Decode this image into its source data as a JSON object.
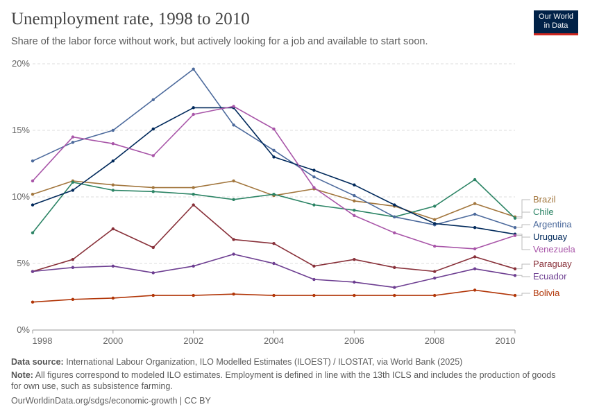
{
  "header": {
    "title": "Unemployment rate, 1998 to 2010",
    "subtitle": "Share of the labor force without work, but actively looking for a job and available to start soon.",
    "logo_line1": "Our World",
    "logo_line2": "in Data"
  },
  "footer": {
    "source_label": "Data source:",
    "source_text": "International Labour Organization, ILO Modelled Estimates (ILOEST) / ILOSTAT, via World Bank (2025)",
    "note_label": "Note:",
    "note_text": "All figures correspond to modeled ILO estimates. Employment is defined in line with the 13th ICLS and includes the production of goods for own use, such as subsistence farming.",
    "url": "OurWorldinData.org/sdgs/economic-growth | CC BY"
  },
  "chart_data": {
    "type": "line",
    "x": [
      1998,
      1999,
      2000,
      2001,
      2002,
      2003,
      2004,
      2005,
      2006,
      2007,
      2008,
      2009,
      2010
    ],
    "xticks": [
      1998,
      2000,
      2002,
      2004,
      2006,
      2008,
      2010
    ],
    "yticks": [
      0,
      5,
      10,
      15,
      20
    ],
    "ytick_labels": [
      "0%",
      "5%",
      "10%",
      "15%",
      "20%"
    ],
    "ylim": [
      0,
      20
    ],
    "xlim": [
      1998,
      2010
    ],
    "grid": "horizontal dashed",
    "legend": "right, labels at line ends",
    "series": [
      {
        "name": "Brazil",
        "color": "#a2763d",
        "values": [
          10.2,
          11.2,
          10.9,
          10.7,
          10.7,
          11.2,
          10.1,
          10.6,
          9.7,
          9.3,
          8.3,
          9.5,
          8.5
        ]
      },
      {
        "name": "Chile",
        "color": "#2c8465",
        "values": [
          7.3,
          11.1,
          10.5,
          10.4,
          10.2,
          9.8,
          10.2,
          9.4,
          9.0,
          8.5,
          9.3,
          11.3,
          8.4
        ]
      },
      {
        "name": "Argentina",
        "color": "#4c6a9c",
        "values": [
          12.7,
          14.1,
          15.0,
          17.3,
          19.6,
          15.4,
          13.5,
          11.5,
          10.1,
          8.5,
          7.9,
          8.7,
          7.7
        ]
      },
      {
        "name": "Uruguay",
        "color": "#00295b",
        "values": [
          9.4,
          10.5,
          12.7,
          15.1,
          16.7,
          16.7,
          13.0,
          12.0,
          10.9,
          9.4,
          8.0,
          7.7,
          7.2
        ]
      },
      {
        "name": "Venezuela",
        "color": "#a855a8",
        "values": [
          11.2,
          14.5,
          14.0,
          13.1,
          16.2,
          16.8,
          15.1,
          10.7,
          8.6,
          7.3,
          6.3,
          6.1,
          7.1
        ]
      },
      {
        "name": "Paraguay",
        "color": "#883039",
        "values": [
          4.4,
          5.3,
          7.6,
          6.2,
          9.4,
          6.8,
          6.5,
          4.8,
          5.3,
          4.7,
          4.4,
          5.5,
          4.6
        ]
      },
      {
        "name": "Ecuador",
        "color": "#6d3e91",
        "values": [
          4.4,
          4.7,
          4.8,
          4.3,
          4.8,
          5.7,
          5.0,
          3.8,
          3.6,
          3.2,
          3.9,
          4.6,
          4.1
        ]
      },
      {
        "name": "Bolivia",
        "color": "#b13507",
        "values": [
          2.1,
          2.3,
          2.4,
          2.6,
          2.6,
          2.7,
          2.6,
          2.6,
          2.6,
          2.6,
          2.6,
          3.0,
          2.6
        ]
      }
    ]
  }
}
